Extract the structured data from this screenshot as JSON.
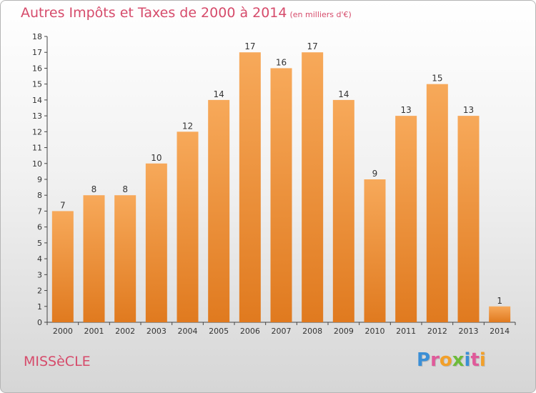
{
  "header": {
    "title": "Autres Impôts et Taxes de 2000 à 2014",
    "unit": "(en milliers d'€)"
  },
  "footer": {
    "commune": "MISSèCLE",
    "brand_letters": [
      "P",
      "r",
      "o",
      "x",
      "i",
      "t",
      "i"
    ],
    "brand_colors": [
      "#3b8fd6",
      "#e05a9a",
      "#f2a02a",
      "#6dbb3a",
      "#3b8fd6",
      "#e05a9a",
      "#f2a02a"
    ]
  },
  "colors": {
    "bar_light": "#f7a95a",
    "bar_dark": "#e07a1f",
    "title": "#d64b6b",
    "axis": "#444444"
  },
  "chart_data": {
    "type": "bar",
    "categories": [
      "2000",
      "2001",
      "2002",
      "2003",
      "2004",
      "2005",
      "2006",
      "2007",
      "2008",
      "2009",
      "2010",
      "2011",
      "2012",
      "2013",
      "2014"
    ],
    "values": [
      7,
      8,
      8,
      10,
      12,
      14,
      17,
      16,
      17,
      14,
      9,
      13,
      15,
      13,
      1
    ],
    "title": "Autres Impôts et Taxes de 2000 à 2014",
    "ylim": [
      0,
      18
    ],
    "yticks": [
      0,
      1,
      2,
      3,
      4,
      5,
      6,
      7,
      8,
      9,
      10,
      11,
      12,
      13,
      14,
      15,
      16,
      17,
      18
    ],
    "grid": false,
    "data_labels": true
  }
}
